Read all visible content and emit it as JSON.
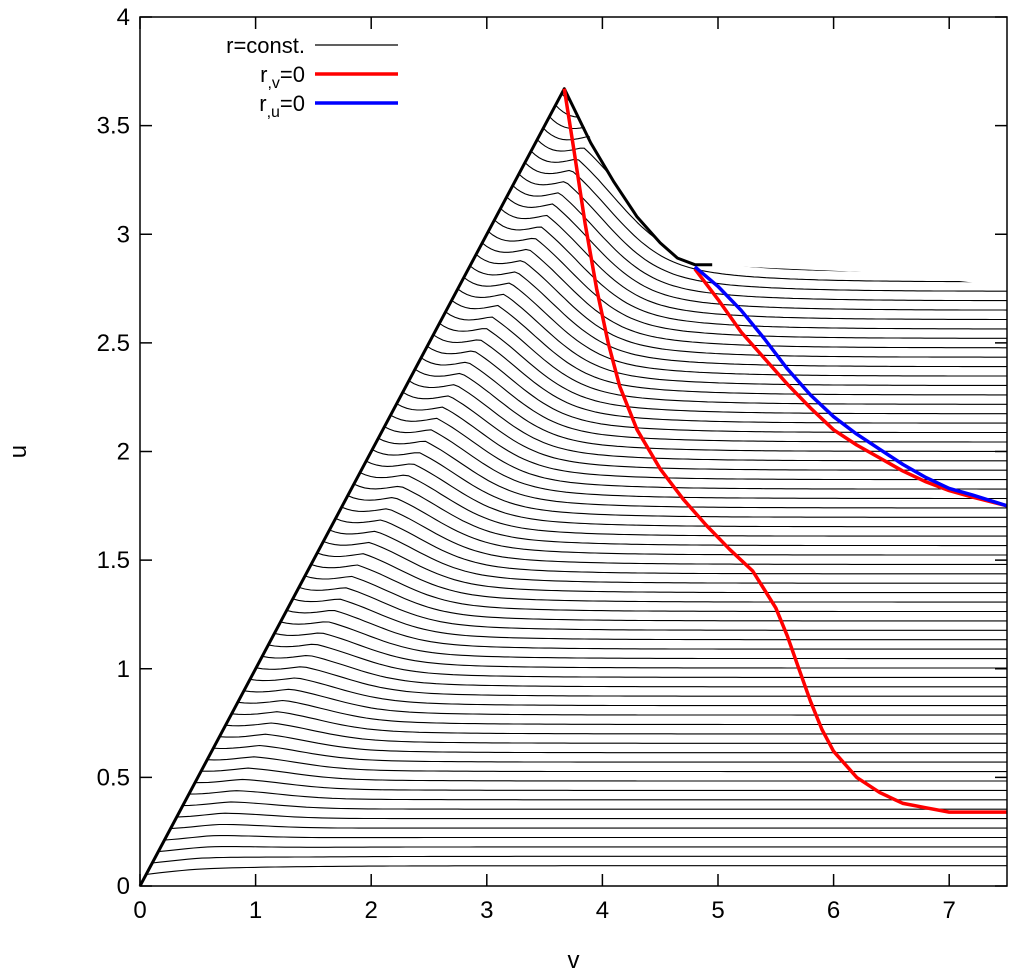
{
  "chart_data": {
    "type": "line",
    "xlabel": "v",
    "ylabel": "u",
    "xlim": [
      0,
      7.5
    ],
    "ylim": [
      0,
      4
    ],
    "xticks": [
      "0",
      "1",
      "2",
      "3",
      "4",
      "5",
      "6",
      "7"
    ],
    "yticks": [
      "0",
      "0.5",
      "1",
      "1.5",
      "2",
      "2.5",
      "3",
      "3.5",
      "4"
    ],
    "grid": false,
    "legend_position": "top-left",
    "legend": [
      {
        "label": "r=const.",
        "color": "#000000"
      },
      {
        "label_main": "r",
        "label_sub": ",v",
        "label_tail": "=0",
        "color": "#ff0000"
      },
      {
        "label_main": "r",
        "label_sub": ",u",
        "label_tail": "=0",
        "color": "#0000ff"
      }
    ],
    "series": [
      {
        "id": "boundary",
        "color": "#000000",
        "x": [
          0,
          3.67,
          3.9,
          4.1,
          4.3,
          4.5,
          4.65,
          4.8,
          4.95
        ],
        "y": [
          0,
          3.67,
          3.42,
          3.24,
          3.08,
          2.96,
          2.89,
          2.86,
          2.86
        ]
      },
      {
        "id": "r_v_zero",
        "color": "#ff0000",
        "x": [
          3.67,
          3.75,
          3.85,
          3.95,
          4.05,
          4.15,
          4.3,
          4.5,
          4.7,
          4.9,
          5.1,
          5.3,
          5.5,
          5.6,
          5.7,
          5.8,
          5.9,
          6.0,
          6.2,
          6.4,
          6.6,
          6.8,
          7.0,
          7.2,
          7.5
        ],
        "y": [
          3.67,
          3.4,
          3.05,
          2.75,
          2.5,
          2.3,
          2.1,
          1.92,
          1.78,
          1.66,
          1.55,
          1.45,
          1.28,
          1.15,
          1.0,
          0.85,
          0.72,
          0.62,
          0.5,
          0.43,
          0.38,
          0.36,
          0.34,
          0.34,
          0.34
        ]
      },
      {
        "id": "r_v_zero_upper",
        "color": "#ff0000",
        "x": [
          4.8,
          5.0,
          5.2,
          5.4,
          5.6,
          5.8,
          6.0,
          6.2,
          6.4,
          6.6,
          6.8,
          7.0,
          7.2,
          7.5
        ],
        "y": [
          2.84,
          2.7,
          2.55,
          2.43,
          2.31,
          2.2,
          2.1,
          2.03,
          1.97,
          1.91,
          1.86,
          1.82,
          1.79,
          1.75
        ]
      },
      {
        "id": "r_u_zero",
        "color": "#0000ff",
        "x": [
          4.8,
          5.0,
          5.2,
          5.4,
          5.6,
          5.8,
          6.0,
          6.2,
          6.4,
          6.6,
          6.8,
          7.0,
          7.2,
          7.5
        ],
        "y": [
          2.85,
          2.76,
          2.65,
          2.52,
          2.38,
          2.26,
          2.16,
          2.08,
          2.01,
          1.94,
          1.88,
          1.83,
          1.8,
          1.75
        ]
      }
    ]
  }
}
